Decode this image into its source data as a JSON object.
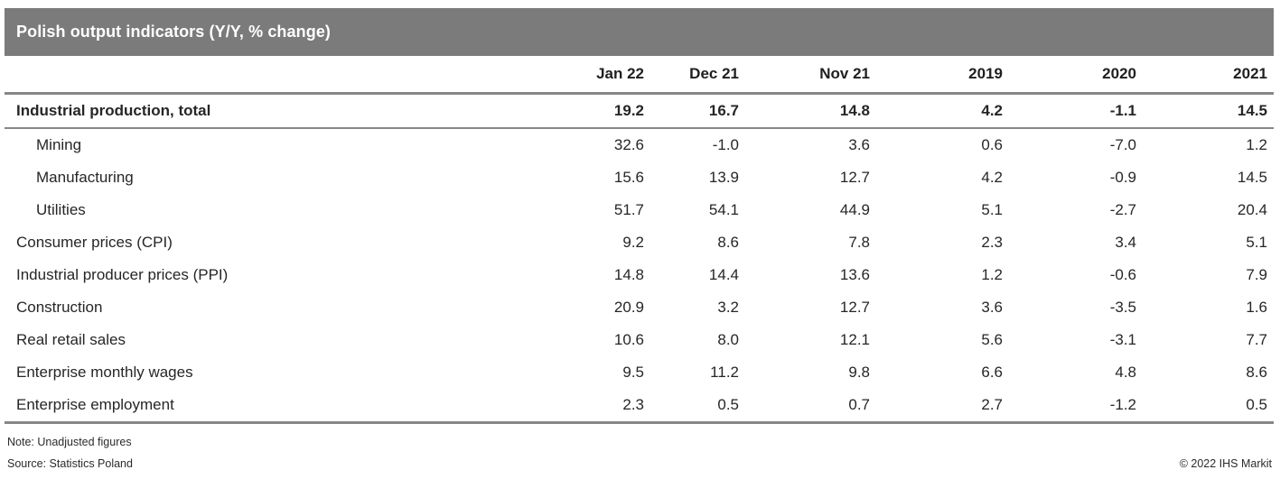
{
  "title_bar": {
    "text": "Polish output indicators (Y/Y, % change)"
  },
  "table": {
    "columns": [
      "Jan 22",
      "Dec 21",
      "Nov 21",
      "2019",
      "2020",
      "2021"
    ],
    "rows": [
      {
        "label": "Industrial production, total",
        "bold": true,
        "indent": false,
        "values": [
          "19.2",
          "16.7",
          "14.8",
          "4.2",
          "-1.1",
          "14.5"
        ]
      },
      {
        "label": "Mining",
        "bold": false,
        "indent": true,
        "values": [
          "32.6",
          "-1.0",
          "3.6",
          "0.6",
          "-7.0",
          "1.2"
        ]
      },
      {
        "label": "Manufacturing",
        "bold": false,
        "indent": true,
        "values": [
          "15.6",
          "13.9",
          "12.7",
          "4.2",
          "-0.9",
          "14.5"
        ]
      },
      {
        "label": "Utilities",
        "bold": false,
        "indent": true,
        "values": [
          "51.7",
          "54.1",
          "44.9",
          "5.1",
          "-2.7",
          "20.4"
        ]
      },
      {
        "label": "Consumer prices (CPI)",
        "bold": false,
        "indent": false,
        "values": [
          "9.2",
          "8.6",
          "7.8",
          "2.3",
          "3.4",
          "5.1"
        ]
      },
      {
        "label": "Industrial producer prices (PPI)",
        "bold": false,
        "indent": false,
        "values": [
          "14.8",
          "14.4",
          "13.6",
          "1.2",
          "-0.6",
          "7.9"
        ]
      },
      {
        "label": "Construction",
        "bold": false,
        "indent": false,
        "values": [
          "20.9",
          "3.2",
          "12.7",
          "3.6",
          "-3.5",
          "1.6"
        ]
      },
      {
        "label": "Real retail sales",
        "bold": false,
        "indent": false,
        "values": [
          "10.6",
          "8.0",
          "12.1",
          "5.6",
          "-3.1",
          "7.7"
        ]
      },
      {
        "label": "Enterprise monthly wages",
        "bold": false,
        "indent": false,
        "values": [
          "9.5",
          "11.2",
          "9.8",
          "6.6",
          "4.8",
          "8.6"
        ]
      },
      {
        "label": "Enterprise employment",
        "bold": false,
        "indent": false,
        "values": [
          "2.3",
          "0.5",
          "0.7",
          "2.7",
          "-1.2",
          "0.5"
        ]
      }
    ]
  },
  "footer": {
    "note": "Note: Unadjusted figures",
    "source": "Source: Statistics Poland",
    "copyright": "© 2022 IHS Markit"
  },
  "colors": {
    "title_bar_bg": "#7b7b7b",
    "title_bar_fg": "#ffffff",
    "rule": "#878787",
    "text": "#262626"
  },
  "chart_data": {
    "type": "table",
    "title": "Polish output indicators (Y/Y, % change)",
    "columns": [
      "",
      "Jan 22",
      "Dec 21",
      "Nov 21",
      "2019",
      "2020",
      "2021"
    ],
    "rows": [
      [
        "Industrial production, total",
        19.2,
        16.7,
        14.8,
        4.2,
        -1.1,
        14.5
      ],
      [
        "Mining",
        32.6,
        -1.0,
        3.6,
        0.6,
        -7.0,
        1.2
      ],
      [
        "Manufacturing",
        15.6,
        13.9,
        12.7,
        4.2,
        -0.9,
        14.5
      ],
      [
        "Utilities",
        51.7,
        54.1,
        44.9,
        5.1,
        -2.7,
        20.4
      ],
      [
        "Consumer prices (CPI)",
        9.2,
        8.6,
        7.8,
        2.3,
        3.4,
        5.1
      ],
      [
        "Industrial producer prices (PPI)",
        14.8,
        14.4,
        13.6,
        1.2,
        -0.6,
        7.9
      ],
      [
        "Construction",
        20.9,
        3.2,
        12.7,
        3.6,
        -3.5,
        1.6
      ],
      [
        "Real retail sales",
        10.6,
        8.0,
        12.1,
        5.6,
        -3.1,
        7.7
      ],
      [
        "Enterprise monthly wages",
        9.5,
        11.2,
        9.8,
        6.6,
        4.8,
        8.6
      ],
      [
        "Enterprise employment",
        2.3,
        0.5,
        0.7,
        2.7,
        -1.2,
        0.5
      ]
    ],
    "note": "Note: Unadjusted figures",
    "source": "Source: Statistics Poland",
    "layout_hints": {
      "value_alignment": "right",
      "sub_rows_indented": [
        "Mining",
        "Manufacturing",
        "Utilities"
      ],
      "bold_rows": [
        "Industrial production, total"
      ]
    }
  }
}
